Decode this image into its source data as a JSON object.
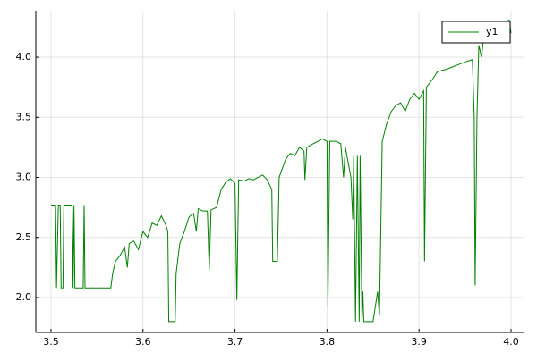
{
  "chart_data": {
    "type": "line",
    "x": [
      3.5,
      3.505,
      3.506,
      3.508,
      3.51,
      3.511,
      3.513,
      3.514,
      3.523,
      3.524,
      3.525,
      3.526,
      3.535,
      3.536,
      3.537,
      3.565,
      3.567,
      3.57,
      3.575,
      3.58,
      3.583,
      3.585,
      3.59,
      3.595,
      3.6,
      3.605,
      3.61,
      3.615,
      3.62,
      3.625,
      3.627,
      3.628,
      3.635,
      3.636,
      3.64,
      3.645,
      3.65,
      3.655,
      3.658,
      3.66,
      3.665,
      3.67,
      3.672,
      3.674,
      3.68,
      3.685,
      3.69,
      3.695,
      3.7,
      3.702,
      3.704,
      3.71,
      3.715,
      3.72,
      3.73,
      3.735,
      3.74,
      3.741,
      3.746,
      3.748,
      3.755,
      3.76,
      3.765,
      3.77,
      3.775,
      3.776,
      3.778,
      3.785,
      3.79,
      3.795,
      3.8,
      3.801,
      3.803,
      3.81,
      3.815,
      3.818,
      3.82,
      3.826,
      3.828,
      3.829,
      3.831,
      3.833,
      3.835,
      3.836,
      3.838,
      3.839,
      3.84,
      3.85,
      3.855,
      3.857,
      3.86,
      3.865,
      3.87,
      3.875,
      3.88,
      3.885,
      3.89,
      3.895,
      3.9,
      3.905,
      3.906,
      3.908,
      3.915,
      3.92,
      3.93,
      3.94,
      3.95,
      3.958,
      3.96,
      3.961,
      3.963,
      3.965,
      3.968,
      3.97,
      3.98,
      3.99,
      3.998,
      4.0
    ],
    "series": [
      {
        "name": "y1",
        "color": "#008000",
        "values": [
          2.77,
          2.77,
          2.08,
          2.77,
          2.77,
          2.08,
          2.08,
          2.77,
          2.77,
          2.08,
          2.77,
          2.08,
          2.08,
          2.77,
          2.08,
          2.08,
          2.2,
          2.3,
          2.35,
          2.42,
          2.25,
          2.45,
          2.47,
          2.4,
          2.55,
          2.5,
          2.62,
          2.6,
          2.68,
          2.6,
          2.55,
          1.8,
          1.8,
          2.2,
          2.45,
          2.55,
          2.67,
          2.7,
          2.55,
          2.74,
          2.72,
          2.72,
          2.23,
          2.73,
          2.75,
          2.9,
          2.96,
          2.99,
          2.95,
          1.98,
          2.98,
          2.97,
          2.99,
          2.98,
          3.02,
          2.98,
          2.9,
          2.3,
          2.3,
          3.0,
          3.15,
          3.2,
          3.18,
          3.25,
          3.22,
          2.98,
          3.25,
          3.28,
          3.3,
          3.32,
          3.3,
          1.92,
          3.3,
          3.3,
          3.28,
          3.0,
          3.25,
          3.0,
          2.65,
          3.18,
          1.8,
          3.18,
          1.8,
          3.18,
          1.8,
          2.05,
          1.8,
          1.8,
          2.05,
          1.85,
          3.3,
          3.45,
          3.55,
          3.6,
          3.62,
          3.55,
          3.65,
          3.7,
          3.65,
          3.72,
          2.3,
          3.75,
          3.82,
          3.88,
          3.9,
          3.93,
          3.96,
          3.98,
          3.5,
          2.1,
          3.5,
          4.1,
          4.0,
          4.15,
          4.2,
          4.28,
          4.31,
          4.2
        ]
      }
    ],
    "xlim": [
      3.4835,
      4.0146
    ],
    "ylim": [
      1.71,
      4.387
    ],
    "xticks": [
      3.5,
      3.6,
      3.7,
      3.8,
      3.9,
      {
        "value": 4.0,
        "label": "4.0"
      }
    ],
    "yticks": [
      {
        "value": 2.0,
        "label": "2.0"
      },
      2.5,
      {
        "value": 3.0,
        "label": "3.0"
      },
      3.5,
      {
        "value": 4.0,
        "label": "4.0"
      }
    ],
    "grid": true,
    "legend": "top-right"
  }
}
